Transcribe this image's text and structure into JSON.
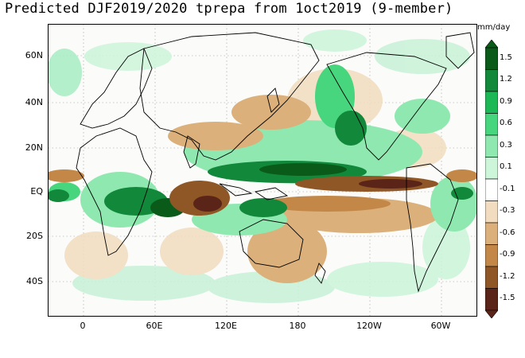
{
  "title": "Predicted DJF2019/2020 tprepa from 1oct2019 (9-member)",
  "units": "mm/day",
  "lat_labels": [
    "60N",
    "40N",
    "20N",
    "EQ",
    "20S",
    "40S"
  ],
  "lon_labels": [
    "0",
    "60E",
    "120E",
    "180",
    "120W",
    "60W"
  ],
  "colorbar": {
    "levels": [
      "1.5",
      "1.2",
      "0.9",
      "0.6",
      "0.3",
      "0.1",
      "-0.1",
      "-0.3",
      "-0.6",
      "-0.9",
      "-1.2",
      "-1.5"
    ],
    "colors": [
      "#0a5a1a",
      "#11883a",
      "#1db856",
      "#47d57e",
      "#8fe8b0",
      "#ccf5da",
      "#ffffff",
      "#f1dcbf",
      "#dbb07a",
      "#c38748",
      "#8f5626",
      "#5a2418"
    ]
  },
  "colors": {
    "wet_strong": "#0a6a22",
    "wet_mid": "#33c46a",
    "wet_light": "#a8edc4",
    "dry_light": "#eccfa6",
    "dry_mid": "#c38748",
    "dry_strong": "#6b3418",
    "coast": "#000000"
  }
}
